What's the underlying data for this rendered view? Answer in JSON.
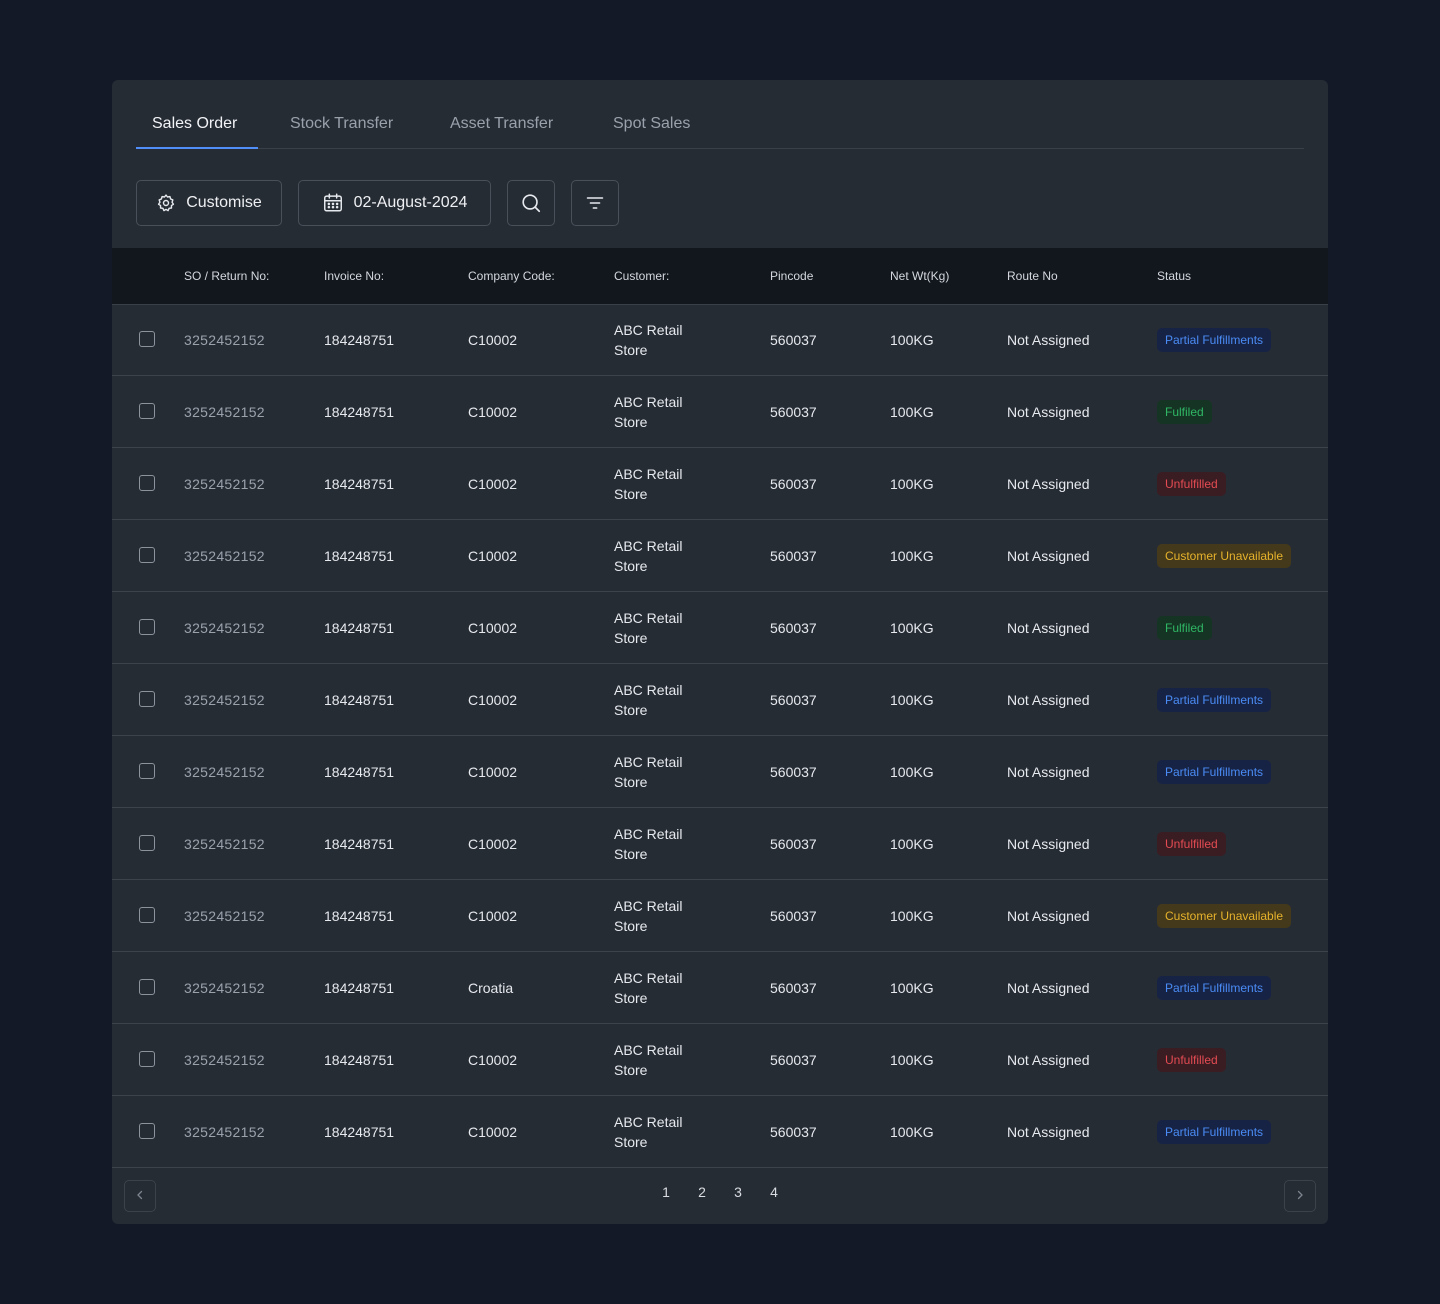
{
  "tabs": [
    {
      "label": "Sales Order",
      "active": true
    },
    {
      "label": "Stock Transfer",
      "active": false
    },
    {
      "label": "Asset Transfer",
      "active": false
    },
    {
      "label": "Spot Sales",
      "active": false
    }
  ],
  "toolbar": {
    "customise_label": "Customise",
    "date_label": "02-August-2024",
    "search_icon": "search-icon",
    "filter_icon": "filter-icon"
  },
  "table": {
    "headers": [
      "SO / Return No:",
      "Invoice No:",
      "Company Code:",
      "Customer:",
      "Pincode",
      "Net Wt(Kg)",
      "Route No",
      "Status"
    ],
    "rows": [
      {
        "so": "3252452152",
        "invoice": "184248751",
        "company": "C10002",
        "customer_line1": "ABC Retail",
        "customer_line2": "Store",
        "pincode": "560037",
        "net_wt": "100KG",
        "route": "Not Assigned",
        "status": "Partial Fulfillments",
        "status_type": "partial"
      },
      {
        "so": "3252452152",
        "invoice": "184248751",
        "company": "C10002",
        "customer_line1": "ABC Retail",
        "customer_line2": "Store",
        "pincode": "560037",
        "net_wt": "100KG",
        "route": "Not Assigned",
        "status": "Fulfiled",
        "status_type": "fulfilled"
      },
      {
        "so": "3252452152",
        "invoice": "184248751",
        "company": "C10002",
        "customer_line1": "ABC Retail",
        "customer_line2": "Store",
        "pincode": "560037",
        "net_wt": "100KG",
        "route": "Not Assigned",
        "status": "Unfulfilled",
        "status_type": "unfulfilled"
      },
      {
        "so": "3252452152",
        "invoice": "184248751",
        "company": "C10002",
        "customer_line1": "ABC Retail",
        "customer_line2": "Store",
        "pincode": "560037",
        "net_wt": "100KG",
        "route": "Not Assigned",
        "status": "Customer Unavailable",
        "status_type": "unavailable"
      },
      {
        "so": "3252452152",
        "invoice": "184248751",
        "company": "C10002",
        "customer_line1": "ABC Retail",
        "customer_line2": "Store",
        "pincode": "560037",
        "net_wt": "100KG",
        "route": "Not Assigned",
        "status": "Fulfiled",
        "status_type": "fulfilled"
      },
      {
        "so": "3252452152",
        "invoice": "184248751",
        "company": "C10002",
        "customer_line1": "ABC Retail",
        "customer_line2": "Store",
        "pincode": "560037",
        "net_wt": "100KG",
        "route": "Not Assigned",
        "status": "Partial Fulfillments",
        "status_type": "partial"
      },
      {
        "so": "3252452152",
        "invoice": "184248751",
        "company": "C10002",
        "customer_line1": "ABC Retail",
        "customer_line2": "Store",
        "pincode": "560037",
        "net_wt": "100KG",
        "route": "Not Assigned",
        "status": "Partial Fulfillments",
        "status_type": "partial"
      },
      {
        "so": "3252452152",
        "invoice": "184248751",
        "company": "C10002",
        "customer_line1": "ABC Retail",
        "customer_line2": "Store",
        "pincode": "560037",
        "net_wt": "100KG",
        "route": "Not Assigned",
        "status": "Unfulfilled",
        "status_type": "unfulfilled"
      },
      {
        "so": "3252452152",
        "invoice": "184248751",
        "company": "C10002",
        "customer_line1": "ABC Retail",
        "customer_line2": "Store",
        "pincode": "560037",
        "net_wt": "100KG",
        "route": "Not Assigned",
        "status": "Customer Unavailable",
        "status_type": "unavailable"
      },
      {
        "so": "3252452152",
        "invoice": "184248751",
        "company": "Croatia",
        "customer_line1": "ABC Retail",
        "customer_line2": "Store",
        "pincode": "560037",
        "net_wt": "100KG",
        "route": "Not Assigned",
        "status": "Partial Fulfillments",
        "status_type": "partial"
      },
      {
        "so": "3252452152",
        "invoice": "184248751",
        "company": "C10002",
        "customer_line1": "ABC Retail",
        "customer_line2": "Store",
        "pincode": "560037",
        "net_wt": "100KG",
        "route": "Not Assigned",
        "status": "Unfulfilled",
        "status_type": "unfulfilled"
      },
      {
        "so": "3252452152",
        "invoice": "184248751",
        "company": "C10002",
        "customer_line1": "ABC Retail",
        "customer_line2": "Store",
        "pincode": "560037",
        "net_wt": "100KG",
        "route": "Not Assigned",
        "status": "Partial Fulfillments",
        "status_type": "partial"
      }
    ]
  },
  "pagination": {
    "pages": [
      "1",
      "2",
      "3",
      "4"
    ],
    "prev_icon": "chevron-left-icon",
    "next_icon": "chevron-right-icon"
  },
  "colors": {
    "background": "#131926",
    "card": "#262c34",
    "accent": "#4f8ff7",
    "partial": "#4a8cf6",
    "fulfilled": "#2fb765",
    "unfulfilled": "#e44b53",
    "unavailable": "#e6b22c"
  }
}
